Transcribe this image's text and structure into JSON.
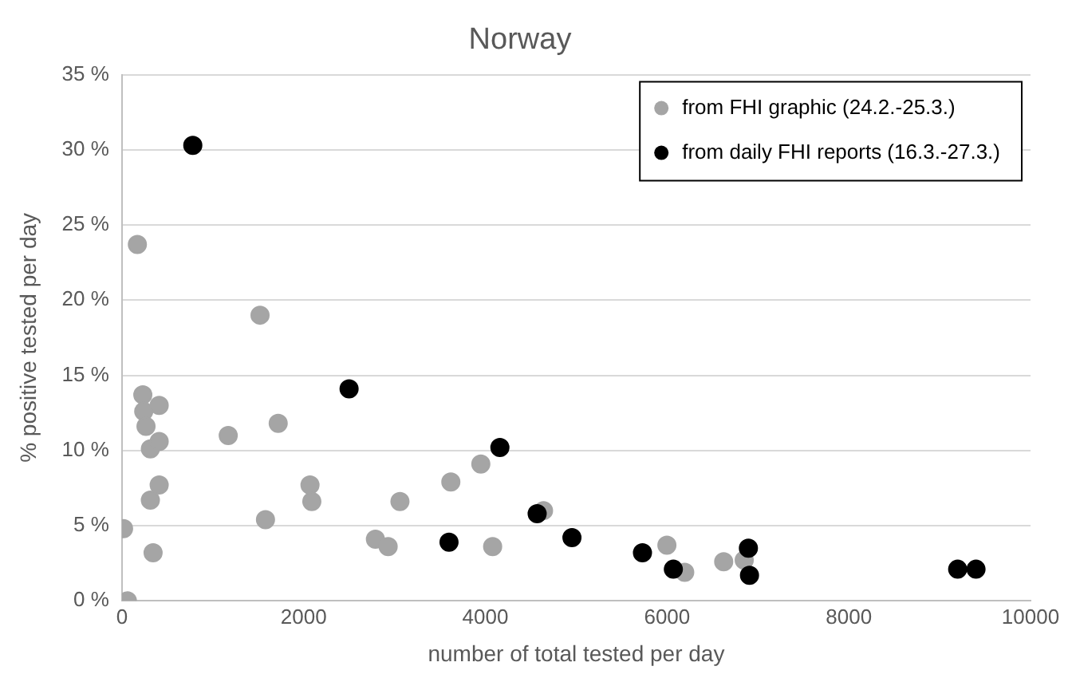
{
  "chart_data": {
    "type": "scatter",
    "title": "Norway",
    "xlabel": "number of total tested per day",
    "ylabel": "% positive tested per day",
    "xlim": [
      0,
      10000
    ],
    "xticks": [
      0,
      2000,
      4000,
      6000,
      8000,
      10000
    ],
    "ylim": [
      0,
      35
    ],
    "yticks": [
      {
        "value": 0,
        "label": "0 %"
      },
      {
        "value": 5,
        "label": "5 %"
      },
      {
        "value": 10,
        "label": "10 %"
      },
      {
        "value": 15,
        "label": "15 %"
      },
      {
        "value": 20,
        "label": "20 %"
      },
      {
        "value": 25,
        "label": "25 %"
      },
      {
        "value": 30,
        "label": "30 %"
      },
      {
        "value": 35,
        "label": "35 %"
      }
    ],
    "grid": "y",
    "legend": "top right",
    "marker": "circle",
    "series": [
      {
        "name": "from FHI graphic (24.2.-25.3.)",
        "color": "#a5a5a5",
        "x": [
          18,
          60,
          170,
          230,
          240,
          265,
          313,
          410,
          410,
          410,
          313,
          343,
          1170,
          1520,
          1580,
          1720,
          2070,
          2090,
          2790,
          2930,
          3060,
          3620,
          3950,
          4080,
          4640,
          5998,
          6194,
          6623,
          6849
        ],
        "values": [
          4.8,
          0,
          23.7,
          13.7,
          12.6,
          11.6,
          10.1,
          10.6,
          13.0,
          7.7,
          6.7,
          3.2,
          11.0,
          19.0,
          5.4,
          11.8,
          7.7,
          6.6,
          4.1,
          3.6,
          6.6,
          7.9,
          9.1,
          3.6,
          6.0,
          3.7,
          1.9,
          2.6,
          2.7
        ]
      },
      {
        "name": "from daily FHI reports (16.3.-27.3.)",
        "color": "#000000",
        "x": [
          780,
          2500,
          3600,
          4160,
          4570,
          4953,
          5729,
          6069,
          6895,
          6907,
          9198,
          9400
        ],
        "values": [
          30.3,
          14.1,
          3.9,
          10.2,
          5.8,
          4.2,
          3.2,
          2.1,
          3.5,
          1.7,
          2.1,
          2.1
        ]
      }
    ]
  }
}
